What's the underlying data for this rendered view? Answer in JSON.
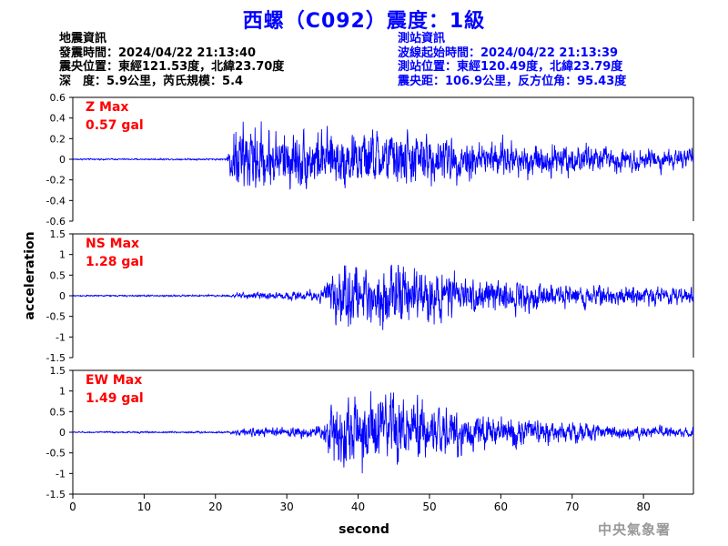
{
  "title": "西螺（C092）震度：1級",
  "quake_info": {
    "heading": "地震資訊",
    "origin_time": "發震時間：2024/04/22 21:13:40",
    "epicenter": "震央位置：東經121.53度，北緯23.70度",
    "depth_magnitude": "深　度：5.9公里，芮氏規模：5.4"
  },
  "station_info": {
    "heading": "測站資訊",
    "wave_start": "波線起始時間：2024/04/22 21:13:39",
    "location": "測站位置：東經120.49度，北緯23.79度",
    "distance_azimuth": "震央距：106.9公里，反方位角：95.43度"
  },
  "agency": "中央氣象署",
  "colors": {
    "trace": "#0000ff",
    "max_label": "#ff0000",
    "title": "#0000ff",
    "station_text": "#0000ff"
  },
  "chart_data": [
    {
      "type": "line",
      "component": "Z",
      "max_label": "Z Max",
      "max_value": "0.57 gal",
      "peak": 0.57,
      "xlabel": "second",
      "ylabel": "acceleration",
      "xlim": [
        0,
        87
      ],
      "ylim": [
        -0.6,
        0.6
      ],
      "yticks": [
        -0.6,
        -0.4,
        -0.2,
        0,
        0.2,
        0.4,
        0.6
      ],
      "ytick_labels": [
        "-0.6",
        "-0.4",
        "-0.2",
        "0",
        "0.2",
        "0.4",
        "0.6"
      ],
      "envelope": {
        "t": [
          0,
          21.5,
          22.5,
          24,
          28,
          35,
          45,
          55,
          65,
          75,
          87
        ],
        "a": [
          0.008,
          0.01,
          0.4,
          0.45,
          0.38,
          0.34,
          0.36,
          0.25,
          0.22,
          0.16,
          0.12
        ]
      }
    },
    {
      "type": "line",
      "component": "NS",
      "max_label": "NS Max",
      "max_value": "1.28 gal",
      "peak": 1.28,
      "xlabel": "second",
      "ylabel": "acceleration",
      "xlim": [
        0,
        87
      ],
      "ylim": [
        -1.5,
        1.5
      ],
      "yticks": [
        -1.5,
        -1,
        -0.5,
        0,
        0.5,
        1,
        1.5
      ],
      "ytick_labels": [
        "-1.5",
        "-1",
        "-0.5",
        "0",
        "0.5",
        "1",
        "1.5"
      ],
      "envelope": {
        "t": [
          0,
          22,
          23,
          30,
          35,
          36.5,
          42,
          48,
          55,
          65,
          75,
          87
        ],
        "a": [
          0.02,
          0.03,
          0.08,
          0.12,
          0.2,
          0.9,
          0.95,
          0.85,
          0.55,
          0.42,
          0.3,
          0.25
        ]
      }
    },
    {
      "type": "line",
      "component": "EW",
      "max_label": "EW Max",
      "max_value": "1.49 gal",
      "peak": 1.49,
      "xlabel": "second",
      "ylabel": "acceleration",
      "xlim": [
        0,
        87
      ],
      "ylim": [
        -1.5,
        1.5
      ],
      "yticks": [
        -1.5,
        -1,
        -0.5,
        0,
        0.5,
        1,
        1.5
      ],
      "ytick_labels": [
        "-1.5",
        "-1",
        "-0.5",
        "0",
        "0.5",
        "1",
        "1.5"
      ],
      "xticks": [
        0,
        10,
        20,
        30,
        40,
        50,
        60,
        70,
        80
      ],
      "xtick_labels": [
        "0",
        "10",
        "20",
        "30",
        "40",
        "50",
        "60",
        "70",
        "80"
      ],
      "envelope": {
        "t": [
          0,
          22,
          23,
          30,
          35,
          36.5,
          42,
          48,
          55,
          65,
          75,
          87
        ],
        "a": [
          0.02,
          0.03,
          0.1,
          0.15,
          0.22,
          1.1,
          1.2,
          1.0,
          0.6,
          0.4,
          0.22,
          0.15
        ]
      }
    }
  ]
}
